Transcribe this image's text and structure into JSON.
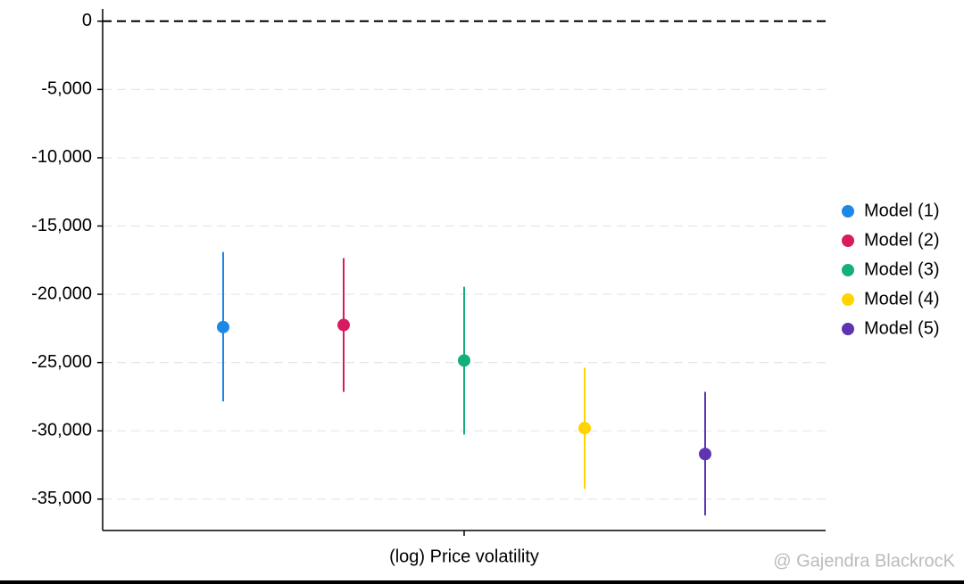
{
  "chart_data": {
    "type": "errorbar",
    "categories": [
      "(log) Price volatility"
    ],
    "ylim": [
      -37300,
      900
    ],
    "yticks": [
      0,
      {
        "value": -5000,
        "label": "-5,000"
      },
      {
        "value": -10000,
        "label": "-10,000"
      },
      {
        "value": -15000,
        "label": "-15,000"
      },
      {
        "value": -20000,
        "label": "-20,000"
      },
      {
        "value": -25000,
        "label": "-25,000"
      },
      {
        "value": -30000,
        "label": "-30,000"
      },
      {
        "value": -35000,
        "label": "-35,000"
      }
    ],
    "grid": true,
    "legend": "right",
    "series": [
      {
        "name": "Model (1)",
        "color": "#1e88e5",
        "values": [
          -22400
        ],
        "lower": [
          -27850
        ],
        "upper": [
          -16900
        ]
      },
      {
        "name": "Model (2)",
        "color": "#d81b60",
        "values": [
          -22250
        ],
        "lower": [
          -27150
        ],
        "upper": [
          -17350
        ]
      },
      {
        "name": "Model (3)",
        "color": "#13b07e",
        "values": [
          -24850
        ],
        "lower": [
          -30270
        ],
        "upper": [
          -19450
        ]
      },
      {
        "name": "Model (4)",
        "color": "#ffd400",
        "values": [
          -29800
        ],
        "lower": [
          -34250
        ],
        "upper": [
          -25380
        ]
      },
      {
        "name": "Model (5)",
        "color": "#5e35b1",
        "values": [
          -31700
        ],
        "lower": [
          -36200
        ],
        "upper": [
          -27150
        ]
      }
    ],
    "watermark": "@ Gajendra BlackrocK"
  }
}
